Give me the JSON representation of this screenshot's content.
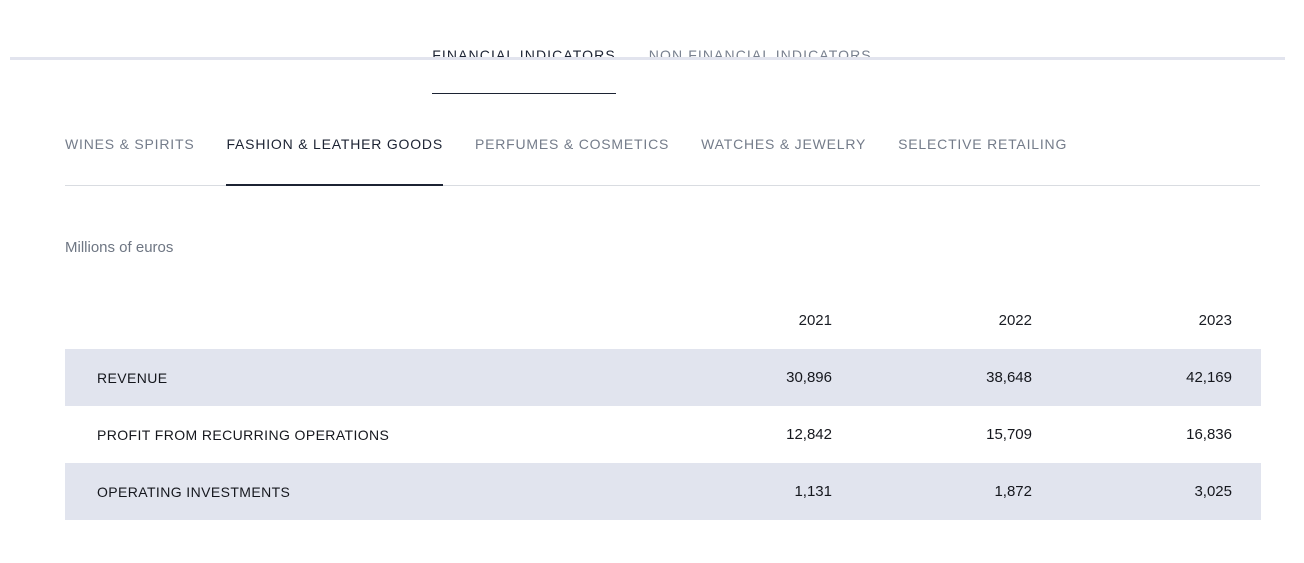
{
  "colors": {
    "top_divider": "#e2e4ee",
    "active_text": "#1c2333",
    "inactive_text": "#79818f",
    "rule": "#d9dce1",
    "shaded_row_bg": "#e1e4ee"
  },
  "primary_tabs": {
    "items": [
      {
        "label": "FINANCIAL INDICATORS",
        "active": true
      },
      {
        "label": "NON FINANCIAL INDICATORS",
        "active": false
      }
    ]
  },
  "category_tabs": {
    "items": [
      {
        "label": "WINES & SPIRITS",
        "active": false
      },
      {
        "label": "FASHION & LEATHER GOODS",
        "active": true
      },
      {
        "label": "PERFUMES & COSMETICS",
        "active": false
      },
      {
        "label": "WATCHES & JEWELRY",
        "active": false
      },
      {
        "label": "SELECTIVE RETAILING",
        "active": false
      }
    ]
  },
  "table": {
    "unit_label": "Millions of euros",
    "years": [
      "2021",
      "2022",
      "2023"
    ],
    "rows": [
      {
        "label": "REVENUE",
        "values": [
          "30,896",
          "38,648",
          "42,169"
        ]
      },
      {
        "label": "PROFIT FROM RECURRING OPERATIONS",
        "values": [
          "12,842",
          "15,709",
          "16,836"
        ]
      },
      {
        "label": "OPERATING INVESTMENTS",
        "values": [
          "1,131",
          "1,872",
          "3,025"
        ]
      }
    ]
  }
}
